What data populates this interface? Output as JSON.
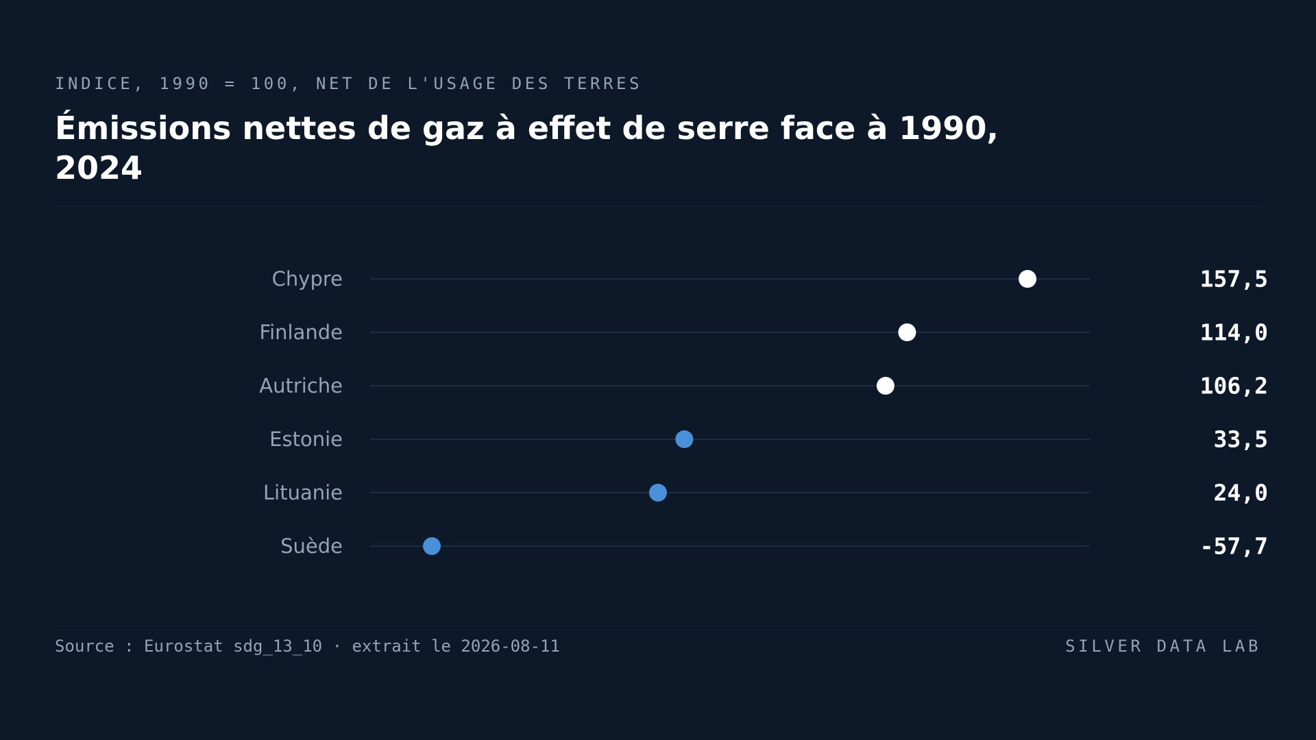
{
  "header": {
    "subtitle": "INDICE, 1990 = 100, NET DE L'USAGE DES TERRES",
    "title": "Émissions nettes de gaz à effet de serre face à 1990, 2024"
  },
  "footer": {
    "source": "Source : Eurostat sdg_13_10 · extrait le 2026-08-11",
    "brand": "SILVER DATA LAB"
  },
  "colors": {
    "background": "#0d1929",
    "above_baseline": "#ffffff",
    "below_baseline": "#4a90d9",
    "track": "#1e2e42",
    "label": "#94a3b8",
    "value": "#ffffff"
  },
  "chart_data": {
    "type": "dot",
    "title": "Émissions nettes de gaz à effet de serre face à 1990, 2024",
    "subtitle": "INDICE, 1990 = 100, NET DE L'USAGE DES TERRES",
    "categories": [
      "Chypre",
      "Finlande",
      "Autriche",
      "Estonie",
      "Lituanie",
      "Suède"
    ],
    "values": [
      157.5,
      114.0,
      106.2,
      33.5,
      24.0,
      -57.7
    ],
    "value_labels": [
      "157,5",
      "114,0",
      "106,2",
      "33,5",
      "24,0",
      "-57,7"
    ],
    "xlim": [
      -80,
      180
    ],
    "baseline": 100,
    "grid": false,
    "legend": "none"
  }
}
